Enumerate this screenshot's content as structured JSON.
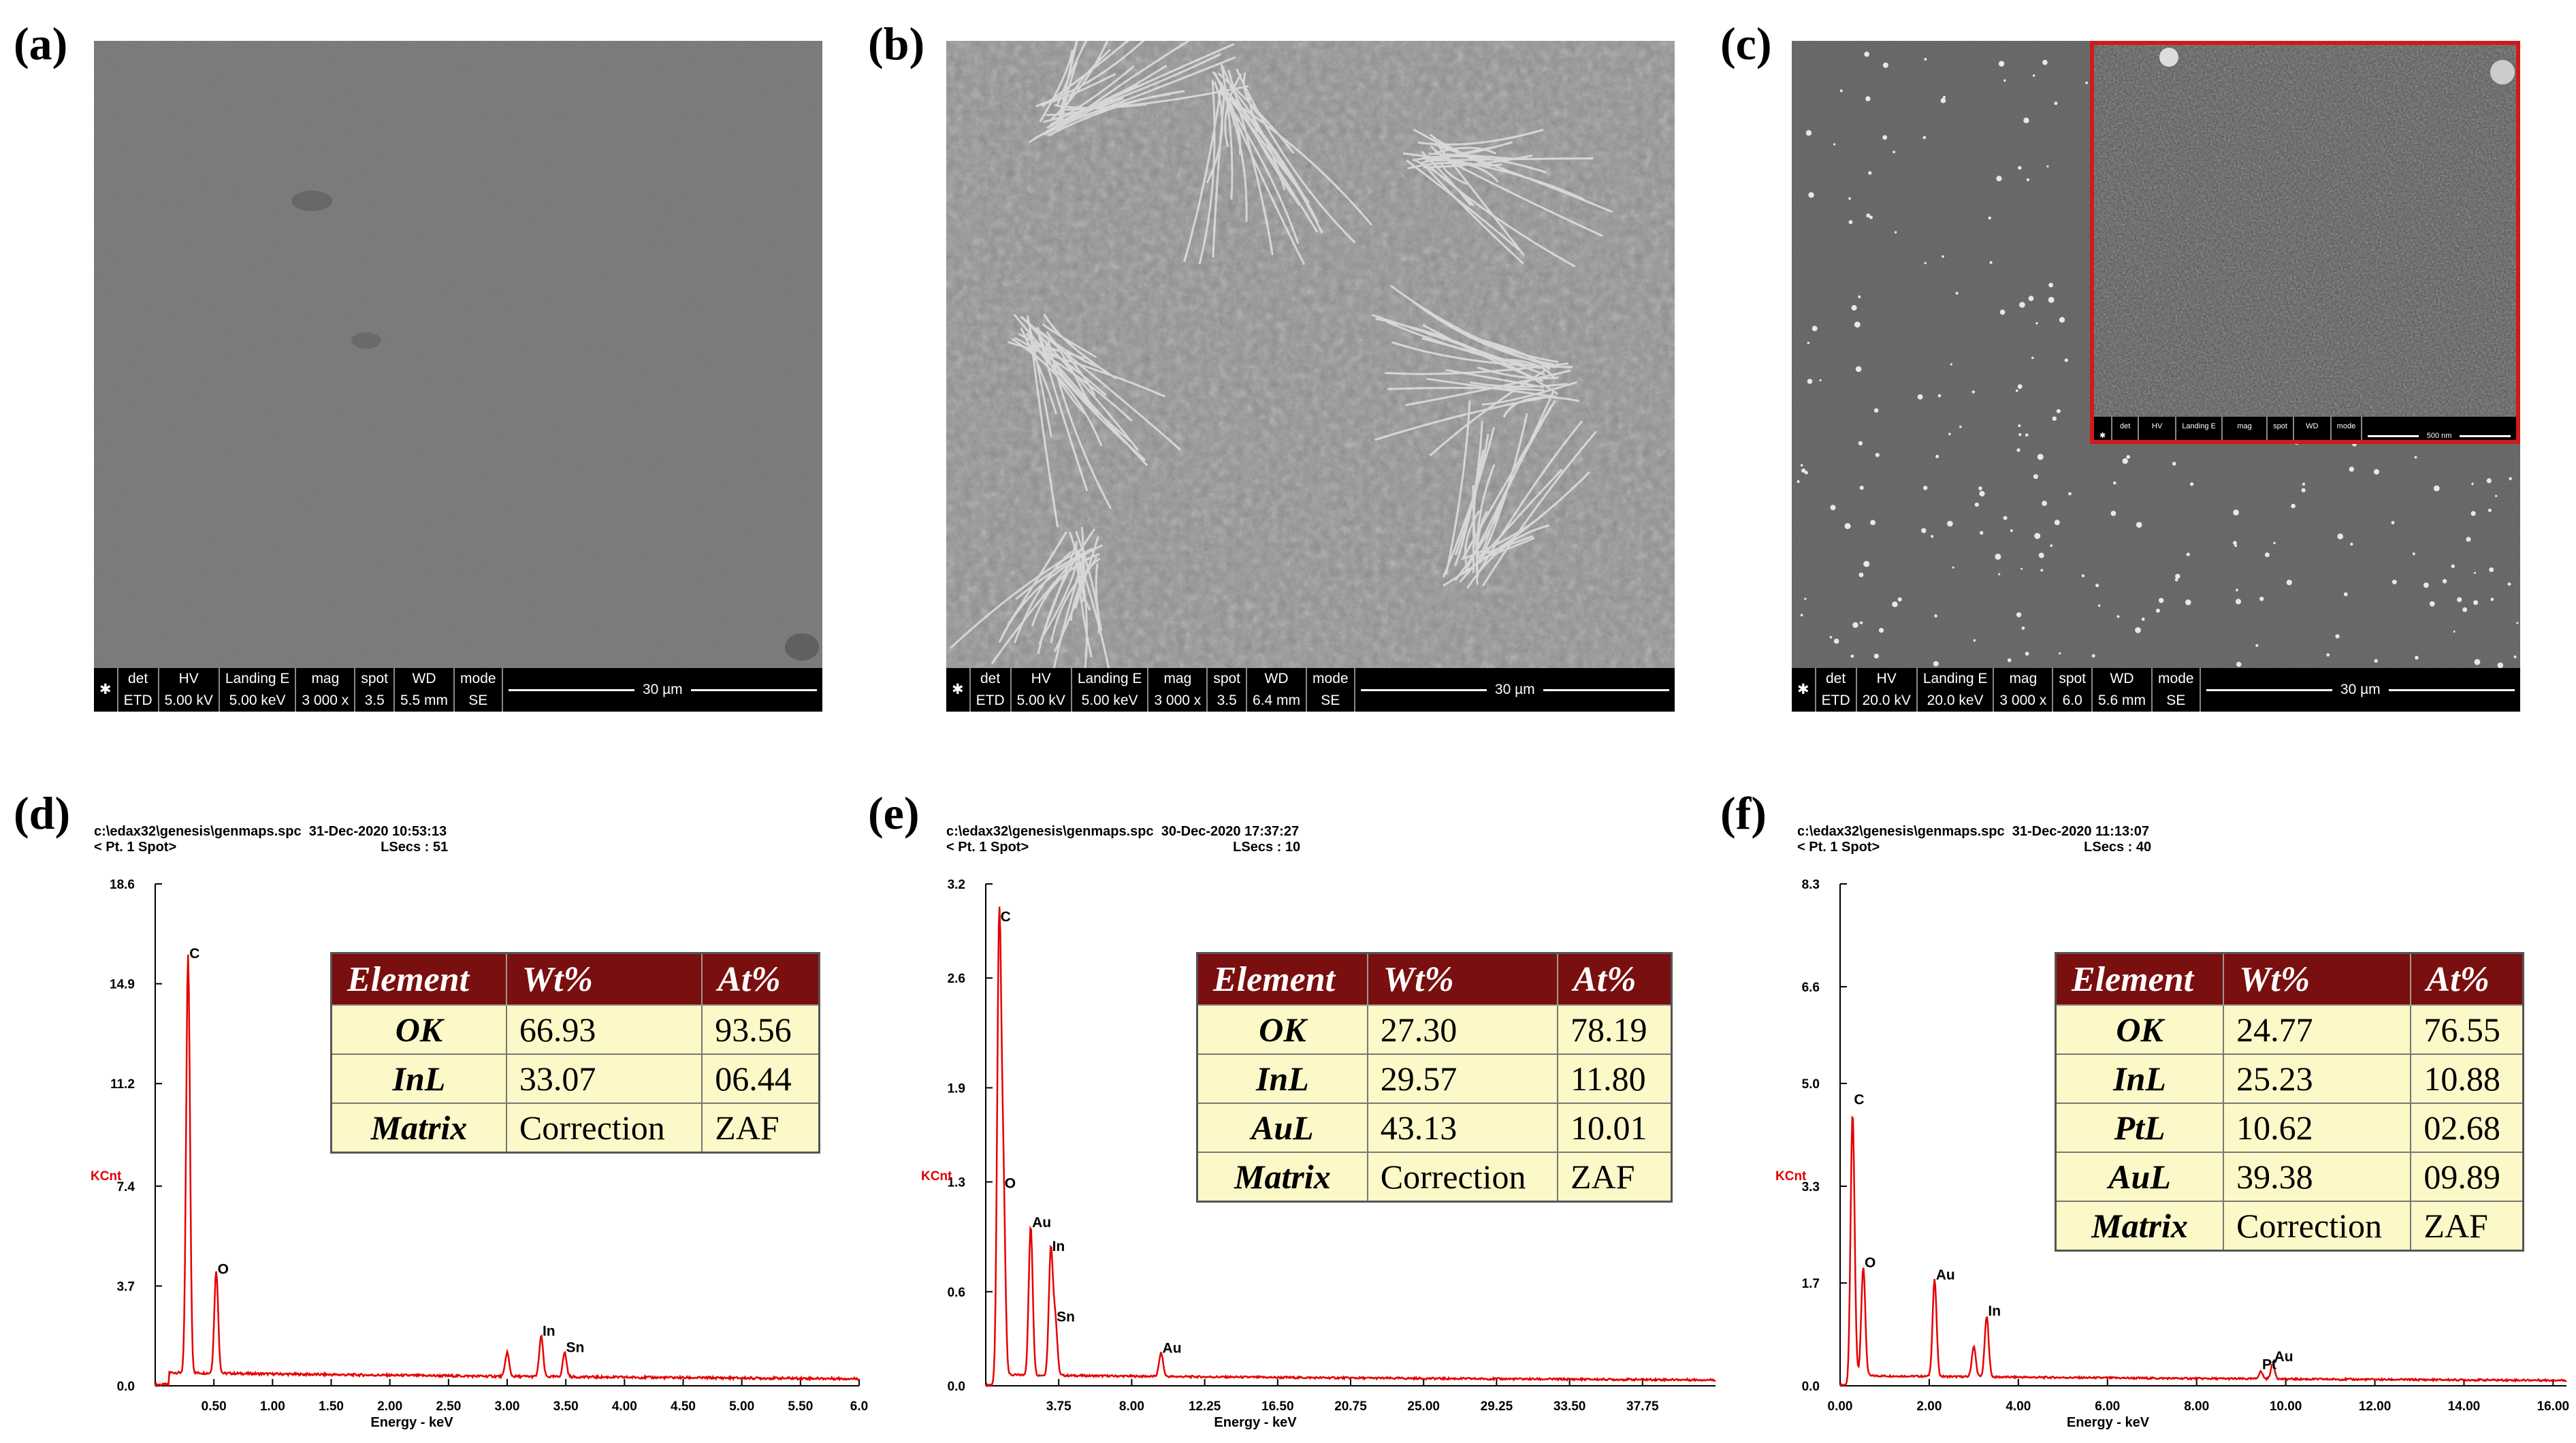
{
  "panels": {
    "a": "(a)",
    "b": "(b)",
    "c": "(c)",
    "d": "(d)",
    "e": "(e)",
    "f": "(f)"
  },
  "sem": [
    {
      "cols": [
        [
          "det",
          "ETD"
        ],
        [
          "HV",
          "5.00 kV"
        ],
        [
          "Landing E",
          "5.00 keV"
        ],
        [
          "mag",
          "3 000 x"
        ],
        [
          "spot",
          "3.5"
        ],
        [
          "WD",
          "5.5 mm"
        ],
        [
          "mode",
          "SE"
        ]
      ],
      "scale": "30 µm"
    },
    {
      "cols": [
        [
          "det",
          "ETD"
        ],
        [
          "HV",
          "5.00 kV"
        ],
        [
          "Landing E",
          "5.00 keV"
        ],
        [
          "mag",
          "3 000 x"
        ],
        [
          "spot",
          "3.5"
        ],
        [
          "WD",
          "6.4 mm"
        ],
        [
          "mode",
          "SE"
        ]
      ],
      "scale": "30 µm"
    },
    {
      "cols": [
        [
          "det",
          "ETD"
        ],
        [
          "HV",
          "20.0 kV"
        ],
        [
          "Landing E",
          "20.0 keV"
        ],
        [
          "mag",
          "3 000 x"
        ],
        [
          "spot",
          "6.0"
        ],
        [
          "WD",
          "5.6 mm"
        ],
        [
          "mode",
          "SE"
        ]
      ],
      "scale": "30 µm"
    }
  ],
  "inset_bar": {
    "cols": [
      [
        "det",
        "TLD"
      ],
      [
        "HV",
        "15.0 kV"
      ],
      [
        "Landing E",
        "15.0 keV"
      ],
      [
        "mag",
        "100 000 x"
      ],
      [
        "spot",
        "3.5"
      ],
      [
        "WD",
        "6.2 mm"
      ],
      [
        "mode",
        "CH"
      ]
    ],
    "scale": "500 nm"
  },
  "spectra": [
    {
      "path": "c:\\edax32\\genesis\\genmaps.spc",
      "date": "31-Dec-2020 10:53:13",
      "spot": "< Pt. 1 Spot>",
      "lsecs": "LSecs : 51"
    },
    {
      "path": "c:\\edax32\\genesis\\genmaps.spc",
      "date": "30-Dec-2020 17:37:27",
      "spot": "< Pt. 1 Spot>",
      "lsecs": "LSecs : 10"
    },
    {
      "path": "c:\\edax32\\genesis\\genmaps.spc",
      "date": "31-Dec-2020 11:13:07",
      "spot": "< Pt. 1 Spot>",
      "lsecs": "LSecs : 40"
    }
  ],
  "tables": [
    {
      "headers": [
        "Element",
        "Wt%",
        "At%"
      ],
      "rows": [
        [
          "OK",
          "66.93",
          "93.56"
        ],
        [
          "InL",
          "33.07",
          "06.44"
        ],
        [
          "Matrix",
          "Correction",
          "ZAF"
        ]
      ]
    },
    {
      "headers": [
        "Element",
        "Wt%",
        "At%"
      ],
      "rows": [
        [
          "OK",
          "27.30",
          "78.19"
        ],
        [
          "InL",
          "29.57",
          "11.80"
        ],
        [
          "AuL",
          "43.13",
          "10.01"
        ],
        [
          "Matrix",
          "Correction",
          "ZAF"
        ]
      ]
    },
    {
      "headers": [
        "Element",
        "Wt%",
        "At%"
      ],
      "rows": [
        [
          "OK",
          "24.77",
          "76.55"
        ],
        [
          "InL",
          "25.23",
          "10.88"
        ],
        [
          "PtL",
          "10.62",
          "02.68"
        ],
        [
          "AuL",
          "39.38",
          "09.89"
        ],
        [
          "Matrix",
          "Correction",
          "ZAF"
        ]
      ]
    }
  ],
  "chart_data": [
    {
      "type": "line",
      "ylabel": "KCnt",
      "xlabel": "Energy - keV",
      "yticks": [
        "0.0",
        "3.7",
        "7.4",
        "11.2",
        "14.9",
        "18.6"
      ],
      "ylim": [
        0,
        18.6
      ],
      "xticks": [
        "0.50",
        "1.00",
        "1.50",
        "2.00",
        "2.50",
        "3.00",
        "3.50",
        "4.00",
        "4.50",
        "5.00",
        "5.50",
        "6.0"
      ],
      "xtick_values": [
        0.5,
        1.0,
        1.5,
        2.0,
        2.5,
        3.0,
        3.5,
        4.0,
        4.5,
        5.0,
        5.5,
        6.0
      ],
      "xlim": [
        0,
        6.0
      ],
      "baseline": 0.35,
      "peaks": [
        {
          "x": 0.28,
          "y": 15.5,
          "label": "C"
        },
        {
          "x": 0.52,
          "y": 3.8,
          "label": "O"
        },
        {
          "x": 3.0,
          "y": 0.9,
          "label": ""
        },
        {
          "x": 3.29,
          "y": 1.5,
          "label": "In"
        },
        {
          "x": 3.49,
          "y": 0.9,
          "label": "Sn"
        }
      ]
    },
    {
      "type": "line",
      "ylabel": "KCnt",
      "xlabel": "Energy - keV",
      "yticks": [
        "0.0",
        "0.6",
        "1.3",
        "1.9",
        "2.6",
        "3.2"
      ],
      "ylim": [
        0,
        3.2
      ],
      "xticks": [
        "3.75",
        "8.00",
        "12.25",
        "16.50",
        "20.75",
        "25.00",
        "29.25",
        "33.50",
        "37.75"
      ],
      "xtick_values": [
        3.75,
        8.0,
        12.25,
        16.5,
        20.75,
        25.0,
        29.25,
        33.5,
        37.75
      ],
      "xlim": [
        -0.5,
        42.0
      ],
      "baseline": 0.05,
      "peaks": [
        {
          "x": 0.28,
          "y": 2.9,
          "label": "C"
        },
        {
          "x": 0.52,
          "y": 1.2,
          "label": "O"
        },
        {
          "x": 2.12,
          "y": 0.95,
          "label": "Au"
        },
        {
          "x": 3.29,
          "y": 0.8,
          "label": "In"
        },
        {
          "x": 3.55,
          "y": 0.35,
          "label": "Sn"
        },
        {
          "x": 9.71,
          "y": 0.15,
          "label": "Au"
        }
      ]
    },
    {
      "type": "line",
      "ylabel": "KCnt",
      "xlabel": "Energy - keV",
      "yticks": [
        "0.0",
        "1.7",
        "3.3",
        "5.0",
        "6.6",
        "8.3"
      ],
      "ylim": [
        0,
        8.3
      ],
      "xticks": [
        "0.00",
        "2.00",
        "4.00",
        "6.00",
        "8.00",
        "10.00",
        "12.00",
        "14.00",
        "16.00"
      ],
      "xtick_values": [
        0,
        2,
        4,
        6,
        8,
        10,
        12,
        14,
        16
      ],
      "xlim": [
        0,
        16.3
      ],
      "baseline": 0.12,
      "peaks": [
        {
          "x": 0.28,
          "y": 4.5,
          "label": "C"
        },
        {
          "x": 0.52,
          "y": 1.8,
          "label": "O"
        },
        {
          "x": 2.12,
          "y": 1.6,
          "label": "Au"
        },
        {
          "x": 3.0,
          "y": 0.5,
          "label": ""
        },
        {
          "x": 3.29,
          "y": 1.0,
          "label": "In"
        },
        {
          "x": 9.44,
          "y": 0.12,
          "label": "Pt"
        },
        {
          "x": 9.71,
          "y": 0.25,
          "label": "Au"
        }
      ]
    }
  ]
}
